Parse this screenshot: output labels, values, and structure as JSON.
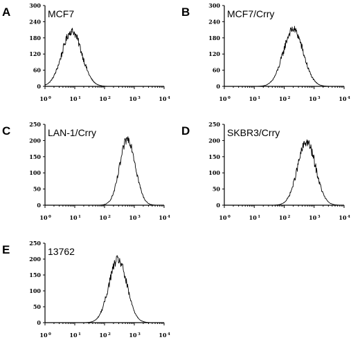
{
  "chart_data": [
    {
      "type": "line",
      "panel_label": "A",
      "title": "MCF7",
      "x_scale": "log",
      "xlim": [
        1,
        10000
      ],
      "ylim": [
        0,
        300
      ],
      "y_ticks": [
        "0",
        "60",
        "120",
        "180",
        "240",
        "300"
      ],
      "x_ticks": [
        {
          "base": "10",
          "exp": "0"
        },
        {
          "base": "10",
          "exp": "1"
        },
        {
          "base": "10",
          "exp": "2"
        },
        {
          "base": "10",
          "exp": "3"
        },
        {
          "base": "10",
          "exp": "4"
        }
      ],
      "peak": 8,
      "width": 0.33,
      "height": 205
    },
    {
      "type": "line",
      "panel_label": "B",
      "title": "MCF7/Crry",
      "x_scale": "log",
      "xlim": [
        1,
        10000
      ],
      "ylim": [
        0,
        300
      ],
      "y_ticks": [
        "0",
        "60",
        "120",
        "180",
        "240",
        "300"
      ],
      "x_ticks": [
        {
          "base": "10",
          "exp": "0"
        },
        {
          "base": "10",
          "exp": "1"
        },
        {
          "base": "10",
          "exp": "2"
        },
        {
          "base": "10",
          "exp": "3"
        },
        {
          "base": "10",
          "exp": "4"
        }
      ],
      "peak": 200,
      "width": 0.33,
      "height": 212
    },
    {
      "type": "line",
      "panel_label": "C",
      "title": "LAN-1/Crry",
      "x_scale": "log",
      "xlim": [
        1,
        10000
      ],
      "ylim": [
        0,
        250
      ],
      "y_ticks": [
        "0",
        "50",
        "100",
        "150",
        "200",
        "250"
      ],
      "x_ticks": [
        {
          "base": "10",
          "exp": "0"
        },
        {
          "base": "10",
          "exp": "1"
        },
        {
          "base": "10",
          "exp": "2"
        },
        {
          "base": "10",
          "exp": "3"
        },
        {
          "base": "10",
          "exp": "4"
        }
      ],
      "peak": 600,
      "width": 0.26,
      "height": 205
    },
    {
      "type": "line",
      "panel_label": "D",
      "title": "SKBR3/Crry",
      "x_scale": "log",
      "xlim": [
        1,
        10000
      ],
      "ylim": [
        0,
        250
      ],
      "y_ticks": [
        "0",
        "50",
        "100",
        "150",
        "200",
        "250"
      ],
      "x_ticks": [
        {
          "base": "10",
          "exp": "0"
        },
        {
          "base": "10",
          "exp": "1"
        },
        {
          "base": "10",
          "exp": "2"
        },
        {
          "base": "10",
          "exp": "3"
        },
        {
          "base": "10",
          "exp": "4"
        }
      ],
      "peak": 560,
      "width": 0.3,
      "height": 195
    },
    {
      "type": "line",
      "panel_label": "E",
      "title": "13762",
      "x_scale": "log",
      "xlim": [
        1,
        10000
      ],
      "ylim": [
        0,
        250
      ],
      "y_ticks": [
        "0",
        "50",
        "100",
        "150",
        "200",
        "250"
      ],
      "x_ticks": [
        {
          "base": "10",
          "exp": "0"
        },
        {
          "base": "10",
          "exp": "1"
        },
        {
          "base": "10",
          "exp": "2"
        },
        {
          "base": "10",
          "exp": "3"
        },
        {
          "base": "10",
          "exp": "4"
        }
      ],
      "peak": 280,
      "width": 0.3,
      "height": 198
    }
  ]
}
